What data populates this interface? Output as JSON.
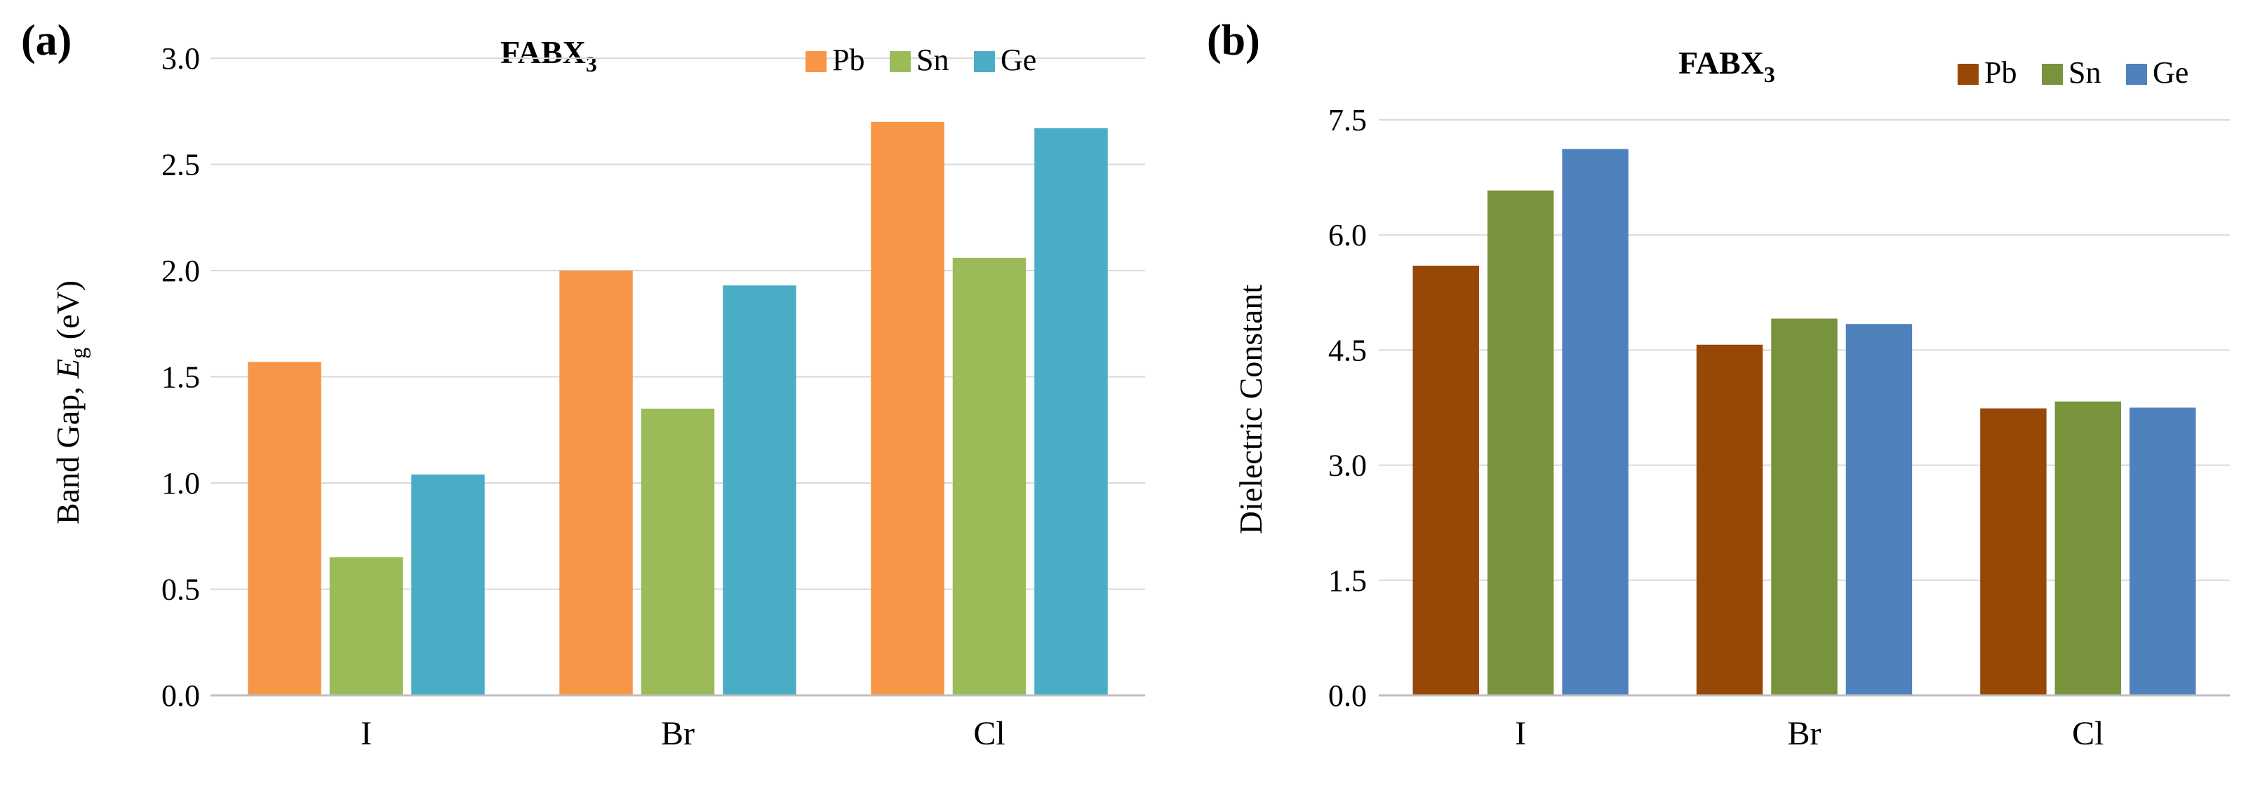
{
  "chart_data": [
    {
      "panel_label": "(a)",
      "type": "bar",
      "title": "FABX",
      "title_sub": "3",
      "categories": [
        "I",
        "Br",
        "Cl"
      ],
      "ylabel_prefix": "Band Gap, ",
      "ylabel_italic": "E",
      "ylabel_sub": "g",
      "ylabel_suffix": " (eV)",
      "xlabel": "",
      "ylim": [
        0,
        3.0
      ],
      "yticks": [
        "0.0",
        "0.5",
        "1.0",
        "1.5",
        "2.0",
        "2.5",
        "3.0"
      ],
      "grid": true,
      "legend_position": "top-right",
      "series": [
        {
          "name": "Pb",
          "color": "#F79646",
          "values": [
            1.57,
            2.0,
            2.7
          ]
        },
        {
          "name": "Sn",
          "color": "#9BBB59",
          "values": [
            0.65,
            1.35,
            2.06
          ]
        },
        {
          "name": "Ge",
          "color": "#4BACC6",
          "values": [
            1.04,
            1.93,
            2.67
          ]
        }
      ]
    },
    {
      "panel_label": "(b)",
      "type": "bar",
      "title": "FABX",
      "title_sub": "3",
      "categories": [
        "I",
        "Br",
        "Cl"
      ],
      "ylabel": "Dielectric Constant",
      "xlabel": "",
      "ylim": [
        0,
        7.5
      ],
      "yticks": [
        "0.0",
        "1.5",
        "3.0",
        "4.5",
        "6.0",
        "7.5"
      ],
      "grid": true,
      "legend_position": "top-right",
      "series": [
        {
          "name": "Pb",
          "color": "#974706",
          "values": [
            5.6,
            4.57,
            3.74
          ]
        },
        {
          "name": "Sn",
          "color": "#77933C",
          "values": [
            6.58,
            4.91,
            3.83
          ]
        },
        {
          "name": "Ge",
          "color": "#4F81BD",
          "values": [
            7.12,
            4.84,
            3.75
          ]
        }
      ]
    }
  ]
}
